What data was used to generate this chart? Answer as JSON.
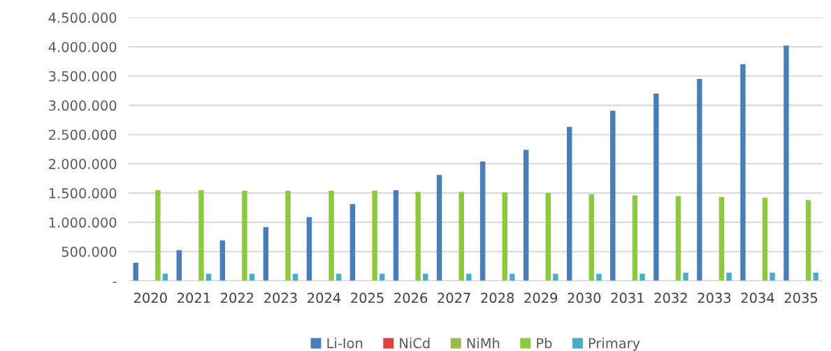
{
  "chart_data": {
    "type": "bar",
    "categories": [
      "2020",
      "2021",
      "2022",
      "2023",
      "2024",
      "2025",
      "2026",
      "2027",
      "2028",
      "2029",
      "2030",
      "2031",
      "2032",
      "2033",
      "2034",
      "2035"
    ],
    "series": [
      {
        "name": "Li-Ion",
        "color": "#4a7ebb",
        "values": [
          310000,
          525000,
          690000,
          920000,
          1090000,
          1310000,
          1550000,
          1810000,
          2040000,
          2240000,
          2630000,
          2910000,
          3200000,
          3450000,
          3700000,
          4020000
        ]
      },
      {
        "name": "NiCd",
        "color": "#d9423e",
        "values": [
          0,
          0,
          0,
          0,
          0,
          0,
          0,
          0,
          0,
          0,
          0,
          0,
          0,
          0,
          0,
          0
        ]
      },
      {
        "name": "NiMh",
        "color": "#98b954",
        "values": [
          0,
          0,
          0,
          0,
          0,
          0,
          0,
          0,
          0,
          0,
          0,
          0,
          0,
          0,
          0,
          0
        ]
      },
      {
        "name": "Pb",
        "color": "#8cc840",
        "values": [
          1550000,
          1550000,
          1540000,
          1540000,
          1540000,
          1540000,
          1520000,
          1520000,
          1510000,
          1500000,
          1480000,
          1460000,
          1450000,
          1430000,
          1420000,
          1380000
        ]
      },
      {
        "name": "Primary",
        "color": "#4bacc6",
        "values": [
          120000,
          120000,
          120000,
          120000,
          120000,
          120000,
          120000,
          120000,
          120000,
          120000,
          120000,
          120000,
          140000,
          140000,
          140000,
          140000
        ]
      }
    ],
    "ylim": [
      0,
      4500000
    ],
    "yticks": [
      {
        "value": 0,
        "label": "-"
      },
      {
        "value": 500000,
        "label": "500.000"
      },
      {
        "value": 1000000,
        "label": "1.000.000"
      },
      {
        "value": 1500000,
        "label": "1.500.000"
      },
      {
        "value": 2000000,
        "label": "2.000.000"
      },
      {
        "value": 2500000,
        "label": "2.500.000"
      },
      {
        "value": 3000000,
        "label": "3.000.000"
      },
      {
        "value": 3500000,
        "label": "3.500.000"
      },
      {
        "value": 4000000,
        "label": "4.000.000"
      },
      {
        "value": 4500000,
        "label": "4.500.000"
      }
    ],
    "grid": "y",
    "legend": "bottom"
  }
}
